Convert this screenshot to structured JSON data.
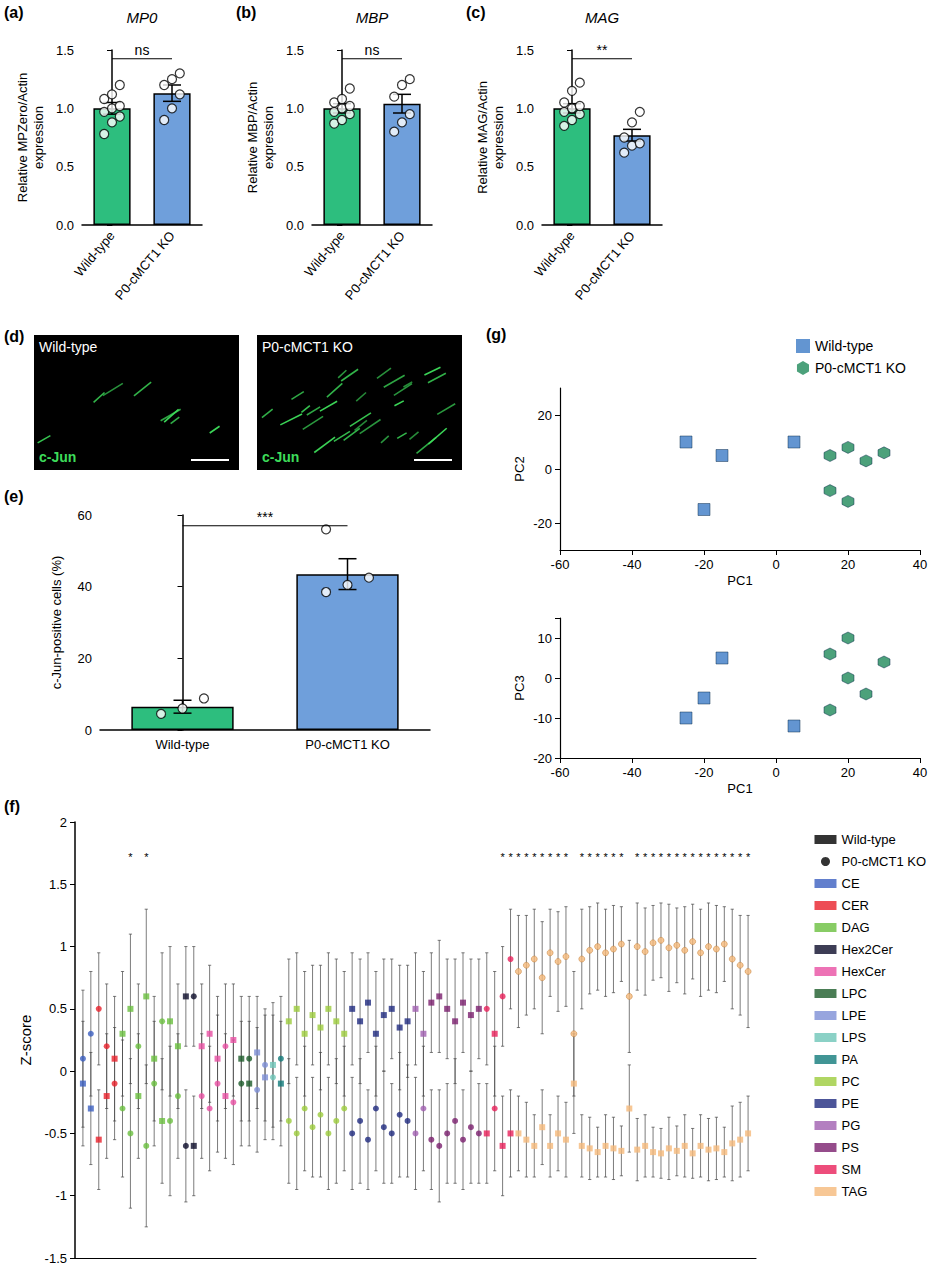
{
  "chart_data": [
    {
      "panel": "(a)",
      "type": "bar",
      "title": "MP0",
      "ylabel": "Relative MPZero/Actin expression",
      "categories": [
        "Wild-type",
        "P0-cMCT1 KO"
      ],
      "values": [
        1.0,
        1.13
      ],
      "errors": [
        0.05,
        0.07
      ],
      "points": [
        [
          0.78,
          0.88,
          0.93,
          0.97,
          1.0,
          1.02,
          1.08,
          1.12,
          1.2
        ],
        [
          0.9,
          1.0,
          1.12,
          1.2,
          1.25,
          1.3
        ]
      ],
      "colors": [
        "#2dbe7e",
        "#6f9fdb"
      ],
      "ylim": [
        0,
        1.5
      ],
      "yticks": [
        {
          "value": 0,
          "label": "0.0"
        },
        {
          "value": 0.5,
          "label": "0.5"
        },
        {
          "value": 1,
          "label": "1.0"
        },
        {
          "value": 1.5,
          "label": "1.5"
        }
      ],
      "annotation": "ns",
      "grid": false
    },
    {
      "panel": "(b)",
      "type": "bar",
      "title": "MBP",
      "ylabel": "Relative MBP/Actin expression",
      "categories": [
        "Wild-type",
        "P0-cMCT1 KO"
      ],
      "values": [
        1.0,
        1.04
      ],
      "errors": [
        0.04,
        0.08
      ],
      "points": [
        [
          0.87,
          0.9,
          0.95,
          0.97,
          1.0,
          1.02,
          1.05,
          1.08,
          1.17
        ],
        [
          0.8,
          0.88,
          0.95,
          1.1,
          1.2,
          1.25
        ]
      ],
      "colors": [
        "#2dbe7e",
        "#6f9fdb"
      ],
      "ylim": [
        0,
        1.5
      ],
      "yticks": [
        {
          "value": 0,
          "label": "0.0"
        },
        {
          "value": 0.5,
          "label": "0.5"
        },
        {
          "value": 1,
          "label": "1.0"
        },
        {
          "value": 1.5,
          "label": "1.5"
        }
      ],
      "annotation": "ns",
      "grid": false
    },
    {
      "panel": "(c)",
      "type": "bar",
      "title": "MAG",
      "ylabel": "Relative MAG/Actin expression",
      "categories": [
        "Wild-type",
        "P0-cMCT1 KO"
      ],
      "values": [
        1.0,
        0.77
      ],
      "errors": [
        0.04,
        0.05
      ],
      "points": [
        [
          0.85,
          0.9,
          0.95,
          0.97,
          1.0,
          1.02,
          1.05,
          1.15,
          1.22
        ],
        [
          0.62,
          0.68,
          0.7,
          0.75,
          0.88,
          0.97
        ]
      ],
      "colors": [
        "#2dbe7e",
        "#6f9fdb"
      ],
      "ylim": [
        0,
        1.5
      ],
      "yticks": [
        {
          "value": 0,
          "label": "0.0"
        },
        {
          "value": 0.5,
          "label": "0.5"
        },
        {
          "value": 1,
          "label": "1.0"
        },
        {
          "value": 1.5,
          "label": "1.5"
        }
      ],
      "annotation": "**",
      "grid": false
    },
    {
      "panel": "(d)",
      "type": "image",
      "images": [
        {
          "label": "Wild-type",
          "stain": "c-Jun"
        },
        {
          "label": "P0-cMCT1 KO",
          "stain": "c-Jun"
        }
      ]
    },
    {
      "panel": "(e)",
      "type": "bar",
      "ylabel": "c-Jun-positive cells (%)",
      "categories": [
        "Wild-type",
        "P0-cMCT1 KO"
      ],
      "values": [
        6.5,
        43.5
      ],
      "errors": [
        1.8,
        4.3
      ],
      "points": [
        [
          4.5,
          6.0,
          8.8
        ],
        [
          38.5,
          40.5,
          42.5,
          56.0
        ]
      ],
      "colors": [
        "#2dbe7e",
        "#6f9fdb"
      ],
      "ylim": [
        0,
        60
      ],
      "yticks": [
        0,
        20,
        40,
        60
      ],
      "annotation": "***",
      "grid": false
    },
    {
      "panel": "(f)",
      "type": "scatter",
      "ylabel": "Z-score",
      "ylim": [
        -1.5,
        2
      ],
      "yticks": [
        -1.5,
        -1,
        -0.5,
        0,
        0.5,
        1,
        1.5,
        2
      ],
      "tick_labels": "y",
      "grid": false,
      "legend": "right",
      "significance_mark": "*",
      "series": [
        {
          "name": "Wild-type",
          "marker": "square"
        },
        {
          "name": "P0-cMCT1 KO",
          "marker": "circle"
        }
      ],
      "classes": [
        {
          "name": "CE",
          "color": "#3b5fc0",
          "wild_type": [
            -0.1,
            -0.3
          ],
          "ko": [
            0.1,
            0.3
          ],
          "wild_type_sem": [
            0.5,
            0.45
          ],
          "ko_sem": [
            0.55,
            0.5
          ],
          "significant": [
            false,
            false
          ]
        },
        {
          "name": "CER",
          "color": "#e8202a",
          "wild_type": [
            -0.55,
            -0.2,
            0.1
          ],
          "ko": [
            0.5,
            0.2,
            -0.1
          ],
          "wild_type_sem": [
            0.4,
            0.5,
            0.5
          ],
          "ko_sem": [
            0.45,
            0.5,
            0.45
          ],
          "significant": [
            false,
            false,
            false
          ]
        },
        {
          "name": "DAG",
          "color": "#6abf3f",
          "wild_type": [
            0.3,
            0.5,
            -0.2,
            0.6,
            0.1,
            -0.4,
            0.4,
            0.2
          ],
          "ko": [
            -0.3,
            -0.5,
            0.2,
            -0.6,
            -0.1,
            0.4,
            -0.4,
            -0.2
          ],
          "wild_type_sem": [
            0.5,
            0.6,
            0.5,
            0.7,
            0.5,
            0.5,
            0.6,
            0.5
          ],
          "ko_sem": [
            0.55,
            0.6,
            0.5,
            0.65,
            0.5,
            0.55,
            0.6,
            0.5
          ],
          "significant": [
            false,
            true,
            false,
            true,
            false,
            false,
            false,
            false
          ]
        },
        {
          "name": "Hex2Cer",
          "color": "#0d0d2b",
          "wild_type": [
            0.6,
            -0.6
          ],
          "ko": [
            -0.6,
            0.6
          ],
          "wild_type_sem": [
            0.4,
            0.4
          ],
          "ko_sem": [
            0.45,
            0.4
          ],
          "significant": [
            false,
            false
          ]
        },
        {
          "name": "HexCer",
          "color": "#e84fa3",
          "wild_type": [
            0.2,
            0.3,
            0.1,
            -0.2,
            0.25
          ],
          "ko": [
            -0.2,
            -0.3,
            -0.1,
            0.2,
            -0.25
          ],
          "wild_type_sem": [
            0.5,
            0.55,
            0.5,
            0.5,
            0.45
          ],
          "ko_sem": [
            0.5,
            0.5,
            0.55,
            0.5,
            0.5
          ],
          "significant": [
            false,
            false,
            false,
            false,
            false
          ]
        },
        {
          "name": "LPC",
          "color": "#1d5c2a",
          "wild_type": [
            0.1,
            -0.1
          ],
          "ko": [
            -0.1,
            0.1
          ],
          "wild_type_sem": [
            0.5,
            0.5
          ],
          "ko_sem": [
            0.5,
            0.5
          ],
          "significant": [
            false,
            false
          ]
        },
        {
          "name": "LPE",
          "color": "#7d8fd6",
          "wild_type": [
            0.15,
            -0.05
          ],
          "ko": [
            -0.15,
            0.05
          ],
          "wild_type_sem": [
            0.45,
            0.5
          ],
          "ko_sem": [
            0.5,
            0.45
          ],
          "significant": [
            false,
            false
          ]
        },
        {
          "name": "LPS",
          "color": "#6ec6b8",
          "wild_type": [
            0.05
          ],
          "ko": [
            -0.05
          ],
          "wild_type_sem": [
            0.5
          ],
          "ko_sem": [
            0.5
          ],
          "significant": [
            false
          ]
        },
        {
          "name": "PA",
          "color": "#127a7a",
          "wild_type": [
            -0.1
          ],
          "ko": [
            0.1
          ],
          "wild_type_sem": [
            0.5
          ],
          "ko_sem": [
            0.5
          ],
          "significant": [
            false
          ]
        },
        {
          "name": "PC",
          "color": "#9ccc3c",
          "wild_type": [
            0.4,
            0.5,
            0.3,
            0.45,
            0.35,
            0.5,
            0.4,
            0.3
          ],
          "ko": [
            -0.4,
            -0.5,
            -0.3,
            -0.45,
            -0.35,
            -0.5,
            -0.4,
            -0.3
          ],
          "wild_type_sem": [
            0.5,
            0.45,
            0.5,
            0.4,
            0.5,
            0.45,
            0.5,
            0.5
          ],
          "ko_sem": [
            0.5,
            0.45,
            0.5,
            0.4,
            0.5,
            0.45,
            0.5,
            0.5
          ],
          "significant": [
            false,
            false,
            false,
            false,
            false,
            false,
            false,
            false
          ]
        },
        {
          "name": "PE",
          "color": "#1f2a80",
          "wild_type": [
            0.5,
            0.4,
            0.55,
            0.3,
            0.45,
            0.5,
            0.35,
            0.4
          ],
          "ko": [
            -0.5,
            -0.4,
            -0.55,
            -0.3,
            -0.45,
            -0.5,
            -0.35,
            -0.4
          ],
          "wild_type_sem": [
            0.45,
            0.5,
            0.4,
            0.5,
            0.45,
            0.4,
            0.5,
            0.45
          ],
          "ko_sem": [
            0.45,
            0.5,
            0.4,
            0.5,
            0.45,
            0.4,
            0.5,
            0.45
          ],
          "significant": [
            false,
            false,
            false,
            false,
            false,
            false,
            false,
            false
          ]
        },
        {
          "name": "PG",
          "color": "#a05fb0",
          "wild_type": [
            0.5,
            0.3
          ],
          "ko": [
            -0.5,
            -0.3
          ],
          "wild_type_sem": [
            0.45,
            0.5
          ],
          "ko_sem": [
            0.45,
            0.5
          ],
          "significant": [
            false,
            false
          ]
        },
        {
          "name": "PS",
          "color": "#7a1f6e",
          "wild_type": [
            0.55,
            0.6,
            0.5,
            0.4,
            0.55,
            0.45,
            0.5
          ],
          "ko": [
            -0.55,
            -0.6,
            -0.5,
            -0.4,
            -0.55,
            -0.45,
            -0.5
          ],
          "wild_type_sem": [
            0.4,
            0.45,
            0.4,
            0.5,
            0.4,
            0.45,
            0.4
          ],
          "ko_sem": [
            0.4,
            0.45,
            0.4,
            0.5,
            0.4,
            0.45,
            0.4
          ],
          "significant": [
            false,
            false,
            false,
            false,
            false,
            false,
            false
          ]
        },
        {
          "name": "SM",
          "color": "#e8205a",
          "wild_type": [
            -0.5,
            0.3,
            -0.6,
            -0.5
          ],
          "ko": [
            0.5,
            -0.3,
            0.6,
            0.9
          ],
          "wild_type_sem": [
            0.4,
            0.5,
            0.4,
            0.35
          ],
          "ko_sem": [
            0.45,
            0.5,
            0.4,
            0.4
          ],
          "significant": [
            false,
            false,
            true,
            true
          ]
        },
        {
          "name": "TAG",
          "color": "#f5b97a",
          "wild_type": [
            -0.5,
            -0.55,
            -0.6,
            -0.45,
            -0.6,
            -0.5,
            -0.55,
            -0.1,
            -0.6,
            -0.62,
            -0.65,
            -0.6,
            -0.62,
            -0.64,
            -0.3,
            -0.63,
            -0.6,
            -0.65,
            -0.66,
            -0.62,
            -0.64,
            -0.6,
            -0.66,
            -0.6,
            -0.63,
            -0.62,
            -0.65,
            -0.58,
            -0.55,
            -0.5
          ],
          "ko": [
            0.8,
            0.85,
            0.9,
            0.75,
            0.95,
            0.88,
            0.92,
            0.3,
            0.9,
            0.97,
            1.0,
            0.95,
            0.98,
            1.02,
            0.6,
            1.0,
            0.96,
            1.03,
            1.05,
            0.99,
            1.01,
            0.97,
            1.04,
            0.95,
            1.0,
            0.98,
            1.02,
            0.9,
            0.85,
            0.8
          ],
          "wild_type_sem": [
            0.3,
            0.3,
            0.25,
            0.3,
            0.25,
            0.3,
            0.3,
            0.4,
            0.25,
            0.25,
            0.2,
            0.25,
            0.25,
            0.2,
            0.35,
            0.25,
            0.25,
            0.2,
            0.2,
            0.25,
            0.2,
            0.25,
            0.2,
            0.25,
            0.25,
            0.25,
            0.2,
            0.3,
            0.3,
            0.3
          ],
          "ko_sem": [
            0.45,
            0.4,
            0.4,
            0.45,
            0.35,
            0.4,
            0.4,
            0.5,
            0.4,
            0.35,
            0.35,
            0.35,
            0.35,
            0.3,
            0.45,
            0.35,
            0.35,
            0.3,
            0.3,
            0.35,
            0.3,
            0.35,
            0.3,
            0.35,
            0.35,
            0.35,
            0.3,
            0.4,
            0.4,
            0.45
          ],
          "significant": [
            true,
            true,
            true,
            true,
            true,
            true,
            true,
            false,
            true,
            true,
            true,
            true,
            true,
            true,
            false,
            true,
            true,
            true,
            true,
            true,
            true,
            true,
            true,
            true,
            true,
            true,
            true,
            true,
            true,
            true
          ]
        }
      ]
    },
    {
      "panel": "(g)",
      "type": "scatter",
      "xlabel": "PC1",
      "ylabel": "PC2",
      "zlabel": "PC3",
      "xlim": [
        -60,
        40
      ],
      "xticks": [
        -60,
        -40,
        -20,
        0,
        20,
        40
      ],
      "ylim": [
        -30,
        30
      ],
      "yticks": [
        -20,
        0,
        20
      ],
      "zlim": [
        -20,
        15
      ],
      "zticks": [
        -20,
        -10,
        0,
        10
      ],
      "legend": "right",
      "grid": false,
      "series": [
        {
          "name": "Wild-type",
          "color": "#3c7bc6",
          "marker": "square",
          "pc1": [
            -25,
            -15,
            -20,
            5
          ],
          "pc2": [
            10,
            5,
            -15,
            10
          ],
          "pc3": [
            -10,
            5,
            -5,
            -12
          ]
        },
        {
          "name": "P0-cMCT1 KO",
          "color": "#1f8a5a",
          "marker": "hexagon",
          "pc1": [
            15,
            20,
            25,
            30,
            15,
            20
          ],
          "pc2": [
            5,
            8,
            3,
            6,
            -8,
            -12
          ],
          "pc3": [
            -8,
            0,
            -4,
            4,
            6,
            10
          ]
        }
      ]
    }
  ]
}
